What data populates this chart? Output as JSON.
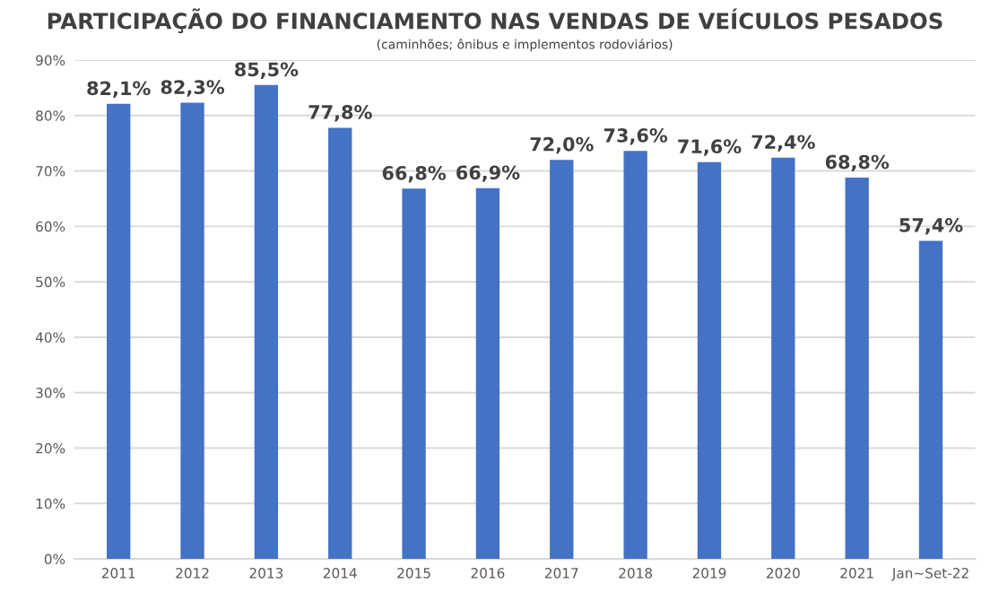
{
  "chart_data": {
    "type": "bar",
    "title": "PARTICIPAÇÃO DO FINANCIAMENTO NAS VENDAS DE VEÍCULOS PESADOS",
    "subtitle": "(caminhões; ônibus e implementos rodoviários)",
    "categories": [
      "2011",
      "2012",
      "2013",
      "2014",
      "2015",
      "2016",
      "2017",
      "2018",
      "2019",
      "2020",
      "2021",
      "Jan~Set-22"
    ],
    "values": [
      82.1,
      82.3,
      85.5,
      77.8,
      66.8,
      66.9,
      72.0,
      73.6,
      71.6,
      72.4,
      68.8,
      57.4
    ],
    "value_labels": [
      "82,1%",
      "82,3%",
      "85,5%",
      "77,8%",
      "66,8%",
      "66,9%",
      "72,0%",
      "73,6%",
      "71,6%",
      "72,4%",
      "68,8%",
      "57,4%"
    ],
    "color": "#4472c4",
    "ylim": [
      0,
      90
    ],
    "yticks": [
      {
        "value": 0,
        "label": "0%"
      },
      {
        "value": 10,
        "label": "10%"
      },
      {
        "value": 20,
        "label": "20%"
      },
      {
        "value": 30,
        "label": "30%"
      },
      {
        "value": 40,
        "label": "40%"
      },
      {
        "value": 50,
        "label": "50%"
      },
      {
        "value": 60,
        "label": "60%"
      },
      {
        "value": 70,
        "label": "70%"
      },
      {
        "value": 80,
        "label": "80%"
      },
      {
        "value": 90,
        "label": "90%"
      }
    ],
    "grid": "y"
  }
}
